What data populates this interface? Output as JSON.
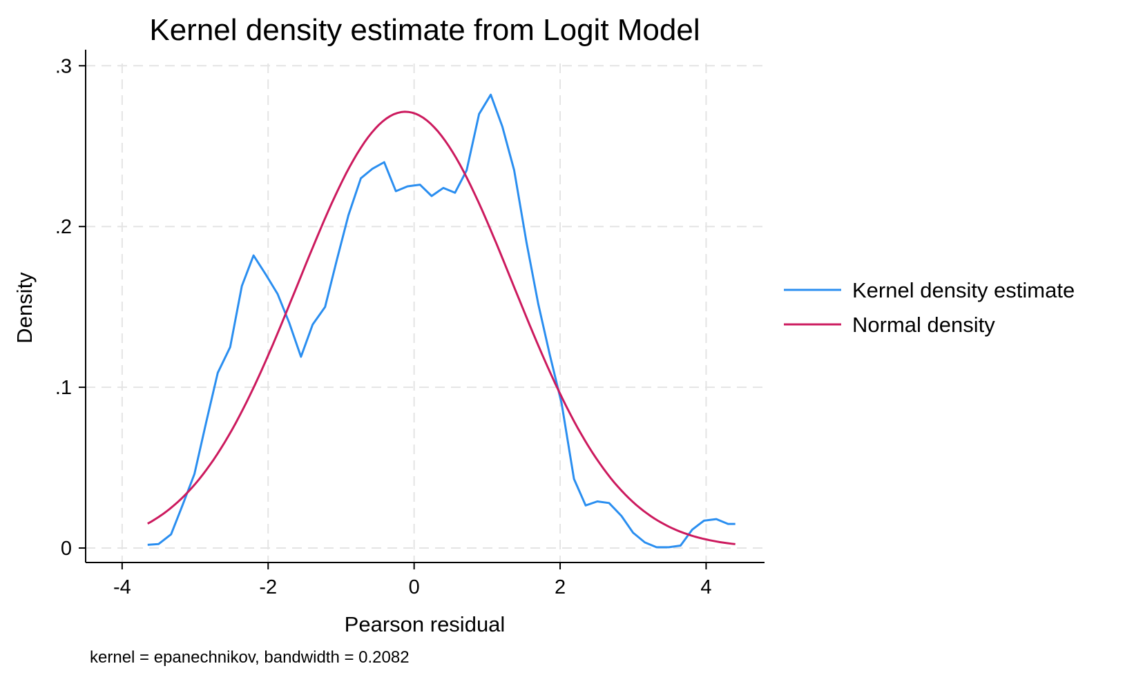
{
  "chart_data": {
    "type": "line",
    "title": "Kernel density estimate from Logit Model",
    "xlabel": "Pearson residual",
    "ylabel": "Density",
    "note": "kernel = epanechnikov, bandwidth = 0.2082",
    "xlim": [
      -4.5,
      4.8
    ],
    "ylim": [
      -0.009,
      0.31
    ],
    "xticks": [
      -4,
      -2,
      0,
      2,
      4
    ],
    "xtick_labels": [
      "-4",
      "-2",
      "0",
      "2",
      "4"
    ],
    "yticks": [
      0,
      0.1,
      0.2,
      0.3
    ],
    "ytick_labels": [
      "0",
      ".1",
      ".2",
      ".3"
    ],
    "grid": true,
    "legend_position": "right",
    "series": [
      {
        "name": "Kernel density estimate",
        "color": "#2a8ef0",
        "x": [
          -3.65,
          -3.5,
          -3.33,
          -3.17,
          -3.01,
          -2.85,
          -2.69,
          -2.52,
          -2.36,
          -2.2,
          -2.03,
          -1.87,
          -1.71,
          -1.55,
          -1.39,
          -1.22,
          -1.06,
          -0.9,
          -0.73,
          -0.57,
          -0.41,
          -0.25,
          -0.09,
          0.08,
          0.24,
          0.4,
          0.56,
          0.72,
          0.89,
          1.05,
          1.21,
          1.37,
          1.54,
          1.7,
          1.86,
          2.02,
          2.19,
          2.35,
          2.51,
          2.67,
          2.84,
          3.0,
          3.16,
          3.32,
          3.49,
          3.65,
          3.81,
          3.97,
          4.14,
          4.3,
          4.4
        ],
        "y": [
          0.002,
          0.0025,
          0.0085,
          0.027,
          0.046,
          0.078,
          0.109,
          0.125,
          0.163,
          0.182,
          0.17,
          0.158,
          0.14,
          0.119,
          0.139,
          0.15,
          0.179,
          0.207,
          0.23,
          0.236,
          0.24,
          0.222,
          0.225,
          0.226,
          0.219,
          0.224,
          0.221,
          0.235,
          0.27,
          0.282,
          0.262,
          0.235,
          0.19,
          0.152,
          0.12,
          0.09,
          0.043,
          0.0265,
          0.029,
          0.028,
          0.02,
          0.0095,
          0.0035,
          0.0005,
          0.0005,
          0.0015,
          0.0115,
          0.017,
          0.018,
          0.015,
          0.015
        ]
      },
      {
        "name": "Normal density",
        "color": "#cc1a5e",
        "mean": -0.12,
        "sd": 1.47,
        "x_range": [
          -3.65,
          4.4
        ]
      }
    ]
  }
}
